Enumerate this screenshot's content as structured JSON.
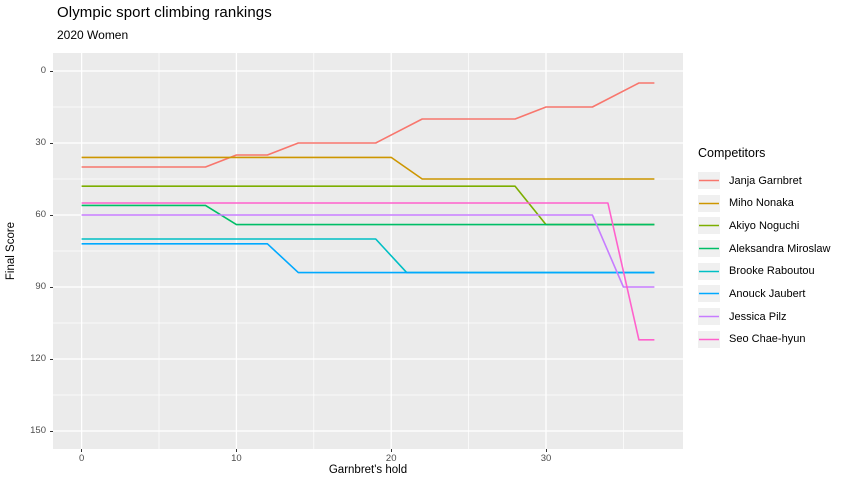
{
  "header": {
    "title": "Olympic sport climbing rankings",
    "subtitle": "2020 Women"
  },
  "chart_data": {
    "type": "line",
    "title": "Olympic sport climbing rankings",
    "subtitle": "2020 Women",
    "xlabel": "Garnbret's hold",
    "ylabel": "Final Score",
    "legend_title": "Competitors",
    "legend_position": "right",
    "grid": true,
    "panel_bg": "#EBEBEB",
    "grid_color": "#FFFFFF",
    "tick_color": "#333333",
    "tick_label_color": "#4D4D4D",
    "x_ticks": [
      0,
      10,
      20,
      30
    ],
    "y_ticks": [
      0,
      30,
      60,
      90,
      120,
      150
    ],
    "xlim": [
      -1.85,
      38.85
    ],
    "ylim": [
      -7.5,
      157.5
    ],
    "y_reversed": true,
    "series": [
      {
        "name": "Janja Garnbret",
        "color": "#F8766D",
        "points": [
          [
            0,
            40
          ],
          [
            8,
            40
          ],
          [
            10,
            35
          ],
          [
            12,
            35
          ],
          [
            14,
            30
          ],
          [
            19,
            30
          ],
          [
            22,
            20
          ],
          [
            28,
            20
          ],
          [
            30,
            15
          ],
          [
            33,
            15
          ],
          [
            36,
            5
          ],
          [
            37,
            5
          ]
        ]
      },
      {
        "name": "Miho Nonaka",
        "color": "#CD9600",
        "points": [
          [
            0,
            36
          ],
          [
            20,
            36
          ],
          [
            22,
            45
          ],
          [
            37,
            45
          ]
        ]
      },
      {
        "name": "Akiyo Noguchi",
        "color": "#7CAE00",
        "points": [
          [
            0,
            48
          ],
          [
            28,
            48
          ],
          [
            30,
            64
          ],
          [
            37,
            64
          ]
        ]
      },
      {
        "name": "Aleksandra Miroslaw",
        "color": "#00BE67",
        "points": [
          [
            0,
            56
          ],
          [
            8,
            56
          ],
          [
            10,
            64
          ],
          [
            37,
            64
          ]
        ]
      },
      {
        "name": "Brooke Raboutou",
        "color": "#00BFC4",
        "points": [
          [
            0,
            70
          ],
          [
            19,
            70
          ],
          [
            21,
            84
          ],
          [
            37,
            84
          ]
        ]
      },
      {
        "name": "Anouck Jaubert",
        "color": "#00A9FF",
        "points": [
          [
            0,
            72
          ],
          [
            12,
            72
          ],
          [
            14,
            84
          ],
          [
            37,
            84
          ]
        ]
      },
      {
        "name": "Jessica Pilz",
        "color": "#C77CFF",
        "points": [
          [
            0,
            60
          ],
          [
            33,
            60
          ],
          [
            35,
            90
          ],
          [
            37,
            90
          ]
        ]
      },
      {
        "name": "Seo Chae-hyun",
        "color": "#FF61CC",
        "points": [
          [
            0,
            55
          ],
          [
            34,
            55
          ],
          [
            36,
            112
          ],
          [
            37,
            112
          ]
        ]
      }
    ]
  }
}
